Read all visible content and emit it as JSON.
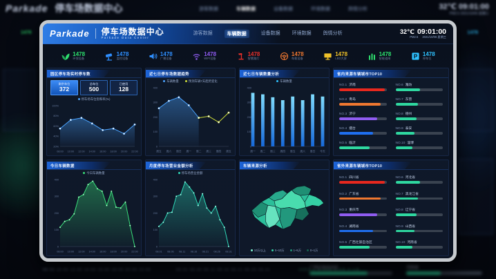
{
  "background": {
    "logo": "Parkade",
    "title": "停车场数据中心",
    "temp": "32℃",
    "time": "09:01:00",
    "pm_label": "PM2.5",
    "date": "2021/10/06 星期三",
    "tabs": [
      "游客数据",
      "车辆数据",
      "设备数据",
      "环境数据",
      "舆情分析"
    ],
    "axis_times": "08:00  10:00  12:00  14:00  16:00  18:00  20:00  22:00",
    "axis_dates": "08.01  08.06  08.11  08.16  08.21  08.26  08.31",
    "map_legend_text": "10万以上   5~10万   1~5万   0~1万"
  },
  "header": {
    "logo": "Parkade",
    "title": "停车场数据中心",
    "subtitle": "Parkade Data Center",
    "tabs": [
      {
        "label": "游客数据",
        "active": false
      },
      {
        "label": "车辆数据",
        "active": true
      },
      {
        "label": "设备数据",
        "active": false
      },
      {
        "label": "环境数据",
        "active": false
      },
      {
        "label": "舆情分析",
        "active": false
      }
    ],
    "temp": "32℃",
    "time": "09:01:00",
    "pm_label": "PM2.5",
    "date": "2021/10/06 星期三"
  },
  "kpis": [
    {
      "icon": "leaf-icon",
      "value": "1478",
      "label": "环保设备",
      "color": "#2ee06e"
    },
    {
      "icon": "camera-icon",
      "value": "1478",
      "label": "监控设备",
      "color": "#2f8fff"
    },
    {
      "icon": "speaker-icon",
      "value": "1478",
      "label": "广播设备",
      "color": "#2f8fff"
    },
    {
      "icon": "wifi-icon",
      "value": "1478",
      "label": "WIFI设备",
      "color": "#8f5cf0"
    },
    {
      "icon": "lamp-icon",
      "value": "1478",
      "label": "智慧路灯",
      "color": "#e8302a"
    },
    {
      "icon": "steering-icon",
      "value": "1478",
      "label": "车载设备",
      "color": "#f07830"
    },
    {
      "icon": "led-icon",
      "value": "1478",
      "label": "LED大屏",
      "color": "#f0c229"
    },
    {
      "icon": "barrier-icon",
      "value": "1478",
      "label": "智能道闸",
      "color": "#2ee06e"
    },
    {
      "icon": "parking-icon",
      "value": "1478",
      "label": "停车位",
      "color": "#2fc2ff"
    }
  ],
  "panels": {
    "realtime": {
      "title": "园区停车场实时停车数",
      "stats": [
        {
          "label": "剩余车位",
          "value": "372"
        },
        {
          "label": "总车位",
          "value": "500"
        },
        {
          "label": "已使用",
          "value": "128"
        }
      ]
    },
    "week_trend": {
      "title": "近七日停车场数据趋势"
    },
    "vehicle_count": {
      "title": "近七日车辆数量分析"
    },
    "rank_in": {
      "title": "省内来源车辆城市TOP10"
    },
    "today": {
      "title": "今日车辆数据"
    },
    "month": {
      "title": "月度停车场营业金额分析"
    },
    "source": {
      "title": "车辆来源分析"
    },
    "rank_out": {
      "title": "省外来源车辆城市TOP10"
    }
  },
  "chart_data": [
    {
      "id": "occupancy",
      "type": "line",
      "title": "园区停车场实时停车数",
      "legend": [
        {
          "label": "停车场车位饱和率(%)",
          "color": "#4aa3ff"
        }
      ],
      "x": [
        "08:00",
        "10:00",
        "12:00",
        "14:00",
        "16:00",
        "18:00",
        "20:00",
        "22:00"
      ],
      "series": [
        {
          "name": "停车场车位饱和率(%)",
          "color": "#4aa3ff",
          "fill": true,
          "values": [
            55,
            72,
            76,
            65,
            52,
            55,
            45,
            63
          ]
        }
      ],
      "ylim": [
        20,
        100
      ],
      "yticks": [
        "100%",
        "80%",
        "60%",
        "40%",
        "20%"
      ]
    },
    {
      "id": "week_trend",
      "type": "line",
      "title": "近七日停车场数据趋势",
      "legend": [
        {
          "label": "车辆数量",
          "color": "#4aa3ff"
        },
        {
          "label": "预测车辆7天趋势变化",
          "color": "#cddc39"
        }
      ],
      "x": [
        "周五",
        "周六",
        "周日",
        "周一",
        "周二",
        "周三",
        "周四",
        "周五"
      ],
      "series": [
        {
          "name": "车辆数量",
          "color": "#4aa3ff",
          "fill": true,
          "values": [
            260,
            310,
            335,
            280,
            195,
            null,
            null,
            null
          ]
        },
        {
          "name": "预测车辆7天趋势变化",
          "color": "#cddc39",
          "fill": false,
          "values": [
            null,
            null,
            null,
            null,
            195,
            205,
            165,
            230
          ]
        }
      ],
      "ylim": [
        0,
        400
      ],
      "yticks": [
        "400",
        "300",
        "200",
        "100",
        "0"
      ]
    },
    {
      "id": "vehicle_count",
      "type": "bar",
      "title": "近七日车辆数量分析",
      "legend": [
        {
          "label": "车辆数量",
          "color": "#2fc2ff"
        }
      ],
      "x": [
        "周一",
        "周二",
        "周三",
        "周四",
        "周五",
        "周六",
        "周日",
        "今天"
      ],
      "values": [
        365,
        355,
        335,
        315,
        340,
        315,
        355,
        340
      ],
      "color": "#2fc2ff",
      "ylim": [
        0,
        400
      ],
      "yticks": [
        "400",
        "300",
        "200",
        "100",
        "0"
      ]
    },
    {
      "id": "today_flow",
      "type": "area",
      "title": "今日车辆数据",
      "legend": [
        {
          "label": "今日车辆数量",
          "color": "#3ae07a"
        }
      ],
      "xlabels": [
        "08:00",
        "10:00",
        "12:00",
        "14:00",
        "16:00",
        "18:00",
        "20:00",
        "22:00"
      ],
      "values": [
        115,
        150,
        160,
        195,
        295,
        310,
        370,
        390,
        345,
        330,
        245,
        330,
        235,
        230,
        265,
        125,
        0
      ],
      "color": "#3ae07a",
      "ylim": [
        0,
        400
      ],
      "yticks": [
        "400",
        "300",
        "200",
        "100",
        "0"
      ]
    },
    {
      "id": "month_revenue",
      "type": "area",
      "title": "月度停车场营业金额分析",
      "legend": [
        {
          "label": "停车场营业金额",
          "color": "#2fd8b8"
        }
      ],
      "xlabels": [
        "08.01",
        "08.06",
        "08.11",
        "08.16",
        "08.21",
        "08.26",
        "08.31"
      ],
      "values": [
        120,
        145,
        200,
        205,
        300,
        310,
        385,
        355,
        320,
        245,
        315,
        230,
        200,
        240,
        160,
        115,
        0
      ],
      "color": "#2fd8b8",
      "ylim": [
        0,
        400
      ],
      "yticks": [
        "400",
        "300",
        "200",
        "100",
        "0"
      ]
    },
    {
      "id": "rank_in_province",
      "type": "hbar",
      "title": "省内来源车辆城市TOP10",
      "items": [
        {
          "rank": "NO.1",
          "name": "济南",
          "value": 96,
          "color": "#e8281e"
        },
        {
          "rank": "NO.2",
          "name": "青岛",
          "value": 88,
          "color": "#f07830"
        },
        {
          "rank": "NO.3",
          "name": "济宁",
          "value": 80,
          "color": "#8f5cf0"
        },
        {
          "rank": "NO.4",
          "name": "烟台",
          "value": 72,
          "color": "#1f6ff0"
        },
        {
          "rank": "NO.5",
          "name": "临沂",
          "value": 64,
          "color": "#2fd8a0"
        },
        {
          "rank": "NO.6",
          "name": "潍坊",
          "value": 52,
          "color": "#2fd8a0"
        },
        {
          "rank": "NO.7",
          "name": "东营",
          "value": 48,
          "color": "#2fd8a0"
        },
        {
          "rank": "NO.8",
          "name": "德州",
          "value": 44,
          "color": "#2fd8a0"
        },
        {
          "rank": "NO.9",
          "name": "泰安",
          "value": 40,
          "color": "#2fd8a0"
        },
        {
          "rank": "NO.10",
          "name": "淄博",
          "value": 36,
          "color": "#2fd8a0"
        }
      ]
    },
    {
      "id": "rank_out_province",
      "type": "hbar",
      "title": "省外来源车辆城市TOP10",
      "items": [
        {
          "rank": "NO.1",
          "name": "四川省",
          "value": 96,
          "color": "#e8281e"
        },
        {
          "rank": "NO.2",
          "name": "广东省",
          "value": 88,
          "color": "#f07830"
        },
        {
          "rank": "NO.3",
          "name": "重庆市",
          "value": 80,
          "color": "#8f5cf0"
        },
        {
          "rank": "NO.4",
          "name": "湖南省",
          "value": 72,
          "color": "#1f6ff0"
        },
        {
          "rank": "NO.5",
          "name": "广西壮族自治区",
          "value": 64,
          "color": "#2fd8a0"
        },
        {
          "rank": "NO.6",
          "name": "河北省",
          "value": 52,
          "color": "#2fd8a0"
        },
        {
          "rank": "NO.7",
          "name": "黑龙江省",
          "value": 48,
          "color": "#2fd8a0"
        },
        {
          "rank": "NO.8",
          "name": "辽宁省",
          "value": 44,
          "color": "#2fd8a0"
        },
        {
          "rank": "NO.9",
          "name": "山西省",
          "value": 40,
          "color": "#2fd8a0"
        },
        {
          "rank": "NO.10",
          "name": "河南省",
          "value": 36,
          "color": "#2fd8a0"
        }
      ]
    },
    {
      "id": "vehicle_source_map",
      "type": "map",
      "title": "车辆来源分析",
      "region": "山东省",
      "legend": [
        {
          "label": "10万以上",
          "color": "#7ef0d0"
        },
        {
          "label": "5~10万",
          "color": "#35d0a5"
        },
        {
          "label": "1~5万",
          "color": "#1f8f74"
        },
        {
          "label": "0~1万",
          "color": "#14604e"
        }
      ]
    }
  ]
}
